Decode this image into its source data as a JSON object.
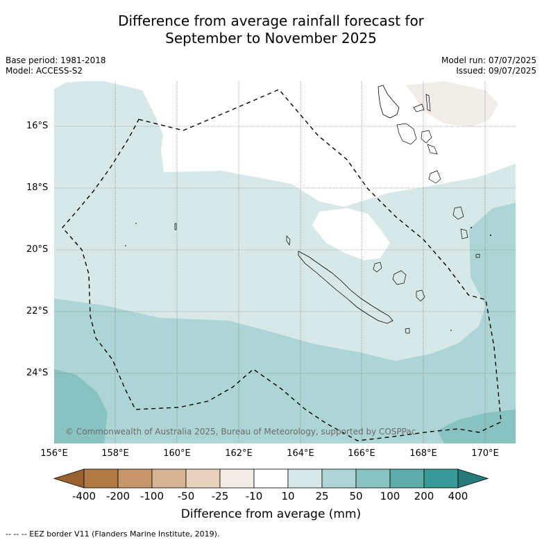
{
  "title_line1": "Difference from average rainfall forecast for",
  "title_line2": "September to November 2025",
  "base_period": "Base period: 1981-2018",
  "model": "Model: ACCESS-S2",
  "model_run": "Model run: 07/07/2025",
  "issued": "Issued: 09/07/2025",
  "copyright": "© Commonwealth of Australia 2025, Bureau of Meteorology, supported by COSPPac",
  "lat_ticks": [
    "16°S",
    "18°S",
    "20°S",
    "22°S",
    "24°S"
  ],
  "lon_ticks": [
    "156°E",
    "158°E",
    "160°E",
    "162°E",
    "164°E",
    "166°E",
    "168°E",
    "170°E"
  ],
  "colorbar": {
    "labels": [
      "-400",
      "-200",
      "-100",
      "-50",
      "-25",
      "-10",
      "10",
      "25",
      "50",
      "100",
      "200",
      "400"
    ],
    "colors": [
      "#9a6231",
      "#b07a42",
      "#c4966a",
      "#d6b393",
      "#e8d2bd",
      "#f2ece7",
      "#ffffff",
      "#d6e9e8",
      "#aed5d5",
      "#88c3c2",
      "#5dacab",
      "#379a97",
      "#267b78"
    ],
    "title": "Difference from average (mm)"
  },
  "footnote": "-- -- -- EEZ border V11 (Flanders Marine Institute, 2019).",
  "colors": {
    "cat_10_25": "#d6e9e8",
    "cat_25_50": "#aed5d5",
    "cat_50_100": "#88c3c2",
    "cat_neutral": "#ffffff",
    "cat_dry_small": "#f0ece8"
  }
}
